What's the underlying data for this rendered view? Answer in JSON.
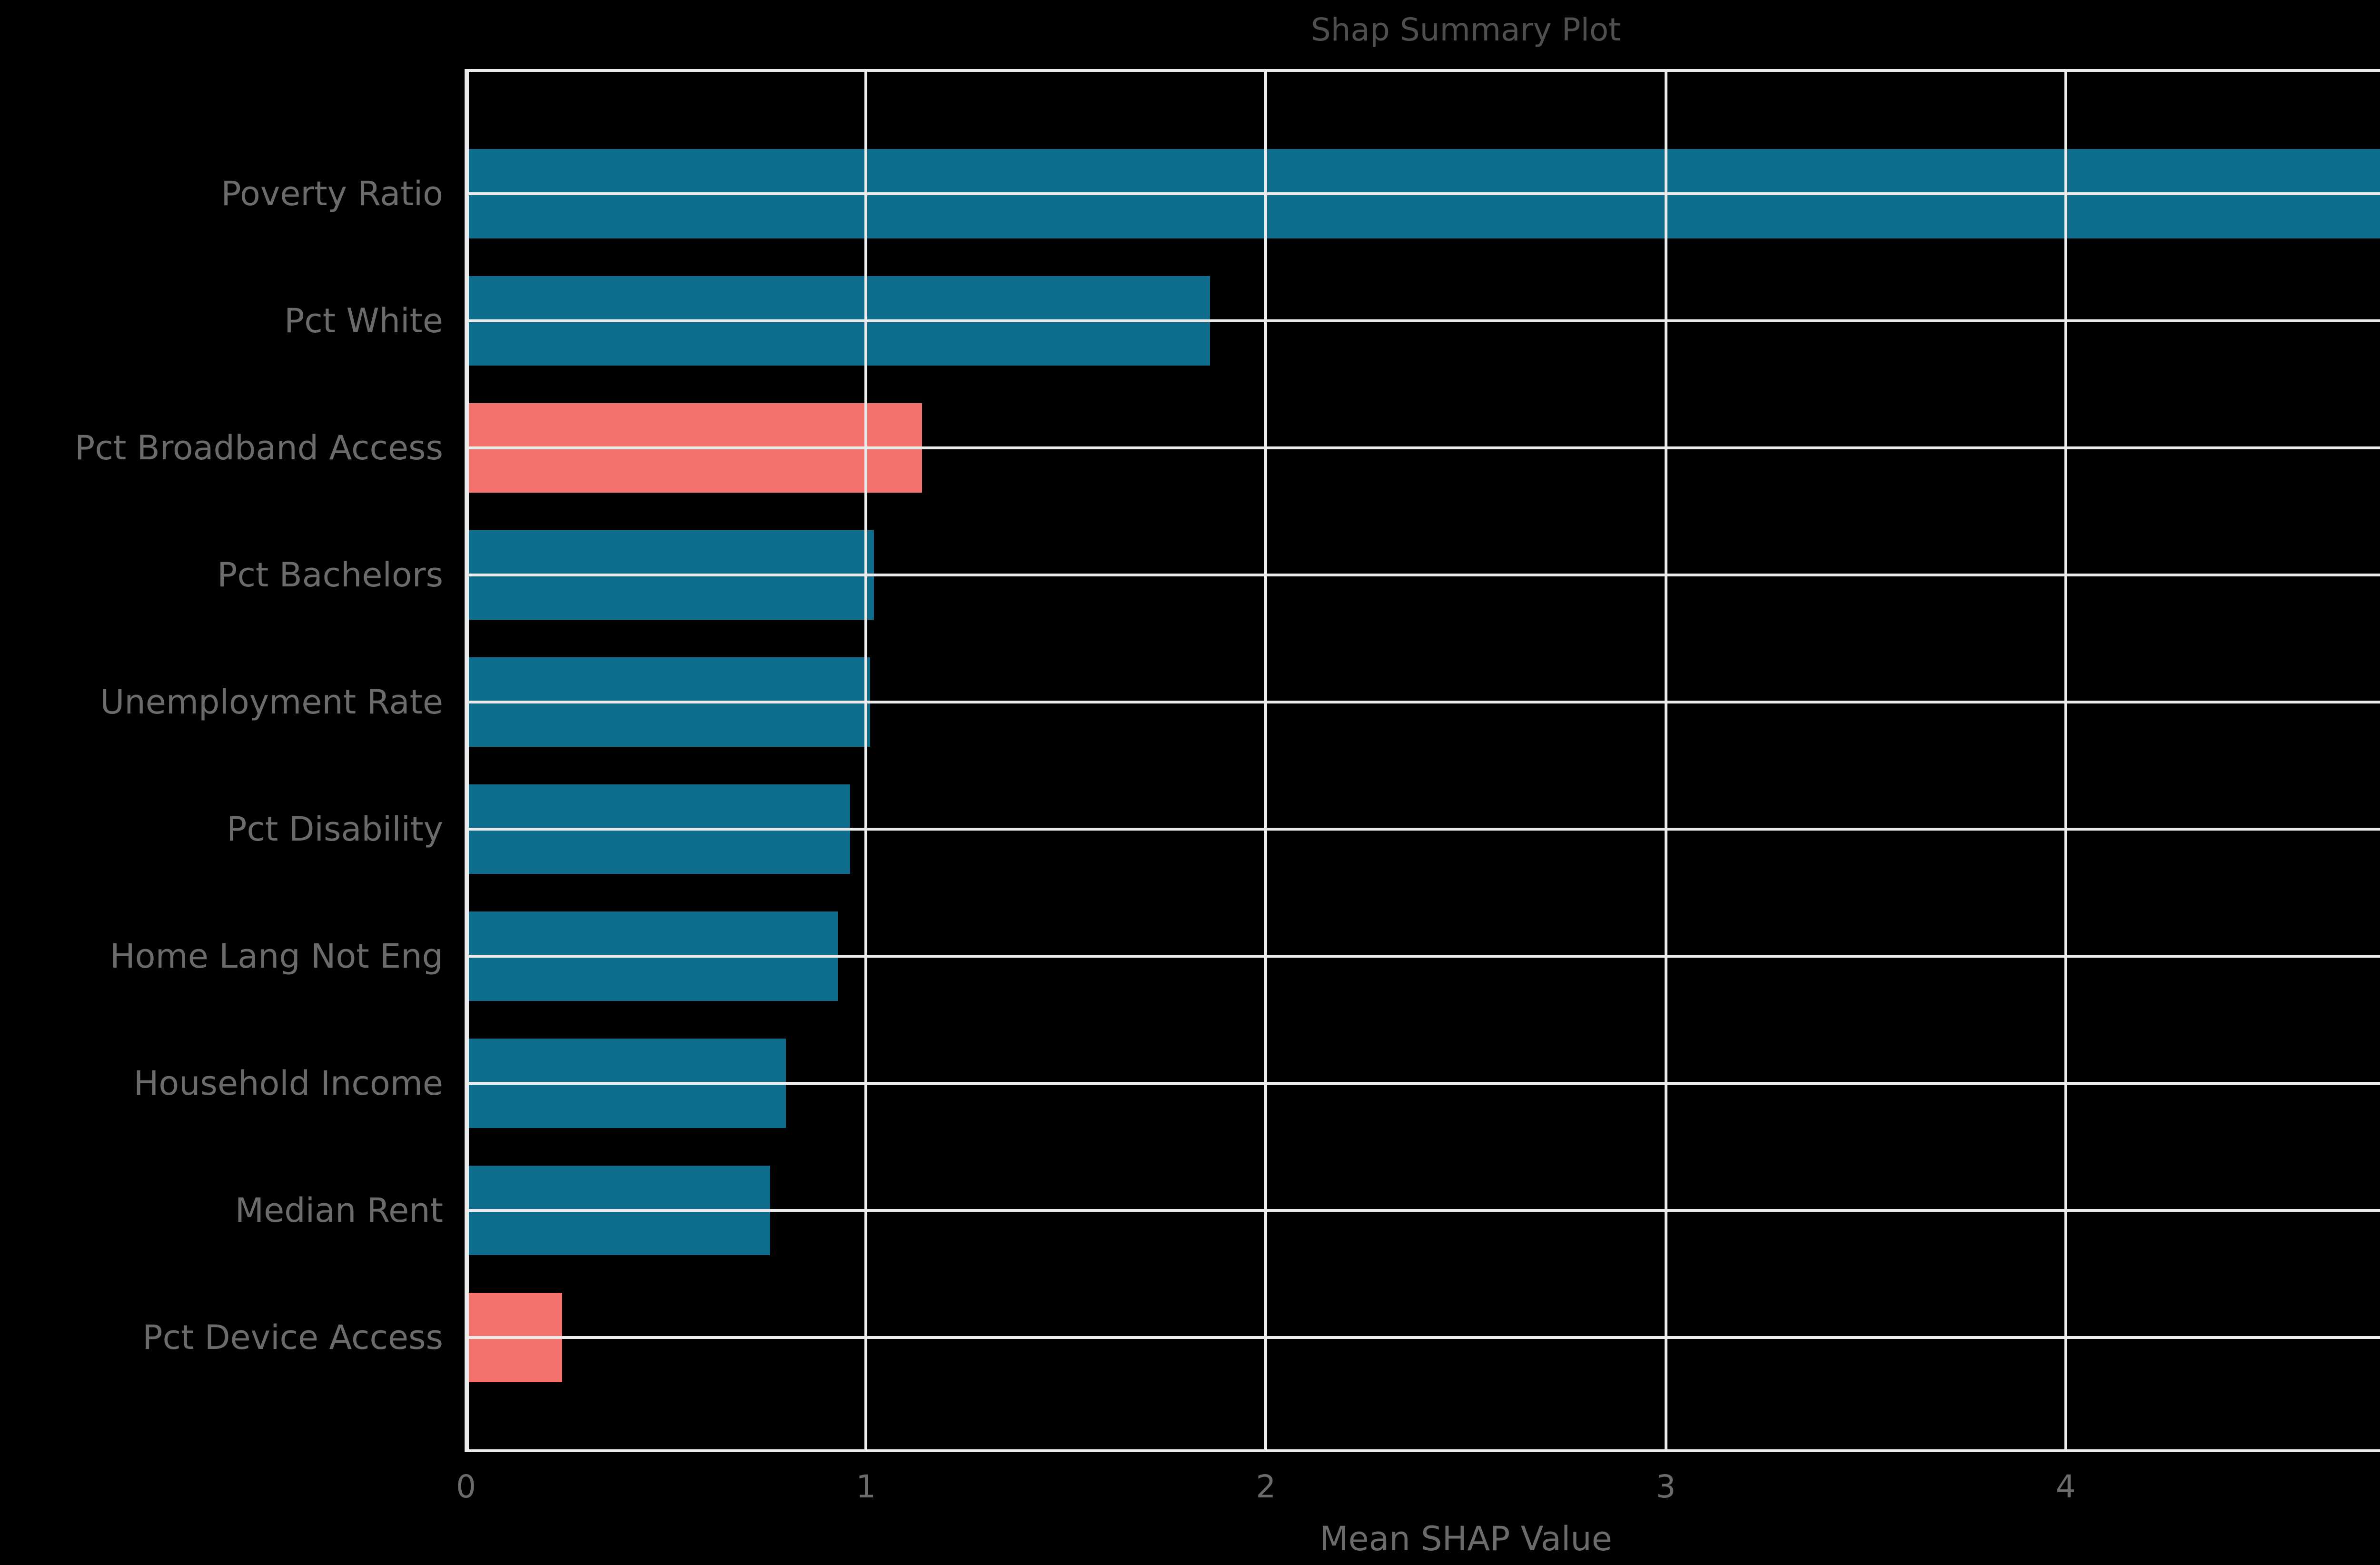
{
  "chart_data": {
    "type": "bar",
    "orientation": "horizontal",
    "title": "Shap Summary Plot",
    "xlabel": "Mean SHAP Value",
    "ylabel": "",
    "categories": [
      "Poverty Ratio",
      "Pct White",
      "Pct Broadband Access",
      "Pct Bachelors",
      "Unemployment Rate",
      "Pct Disability",
      "Home Lang Not Eng",
      "Household Income",
      "Median Rent",
      "Pct Device Access"
    ],
    "values": [
      4.8,
      1.86,
      1.14,
      1.02,
      1.01,
      0.96,
      0.93,
      0.8,
      0.76,
      0.24
    ],
    "bar_colors": [
      "teal",
      "teal",
      "salmon",
      "teal",
      "teal",
      "teal",
      "teal",
      "teal",
      "teal",
      "salmon"
    ],
    "colors": {
      "teal": "#0e6c8d",
      "salmon": "#f4736f",
      "background": "#000000",
      "grid": "#ebebeb",
      "title_text": "#4f4f4f",
      "label_text": "#6b6b6b"
    },
    "xlim": [
      0,
      5
    ],
    "xticks": [
      0,
      1,
      2,
      3,
      4,
      5
    ],
    "grid": true,
    "grid_position": "above-bars",
    "legend": "none"
  }
}
